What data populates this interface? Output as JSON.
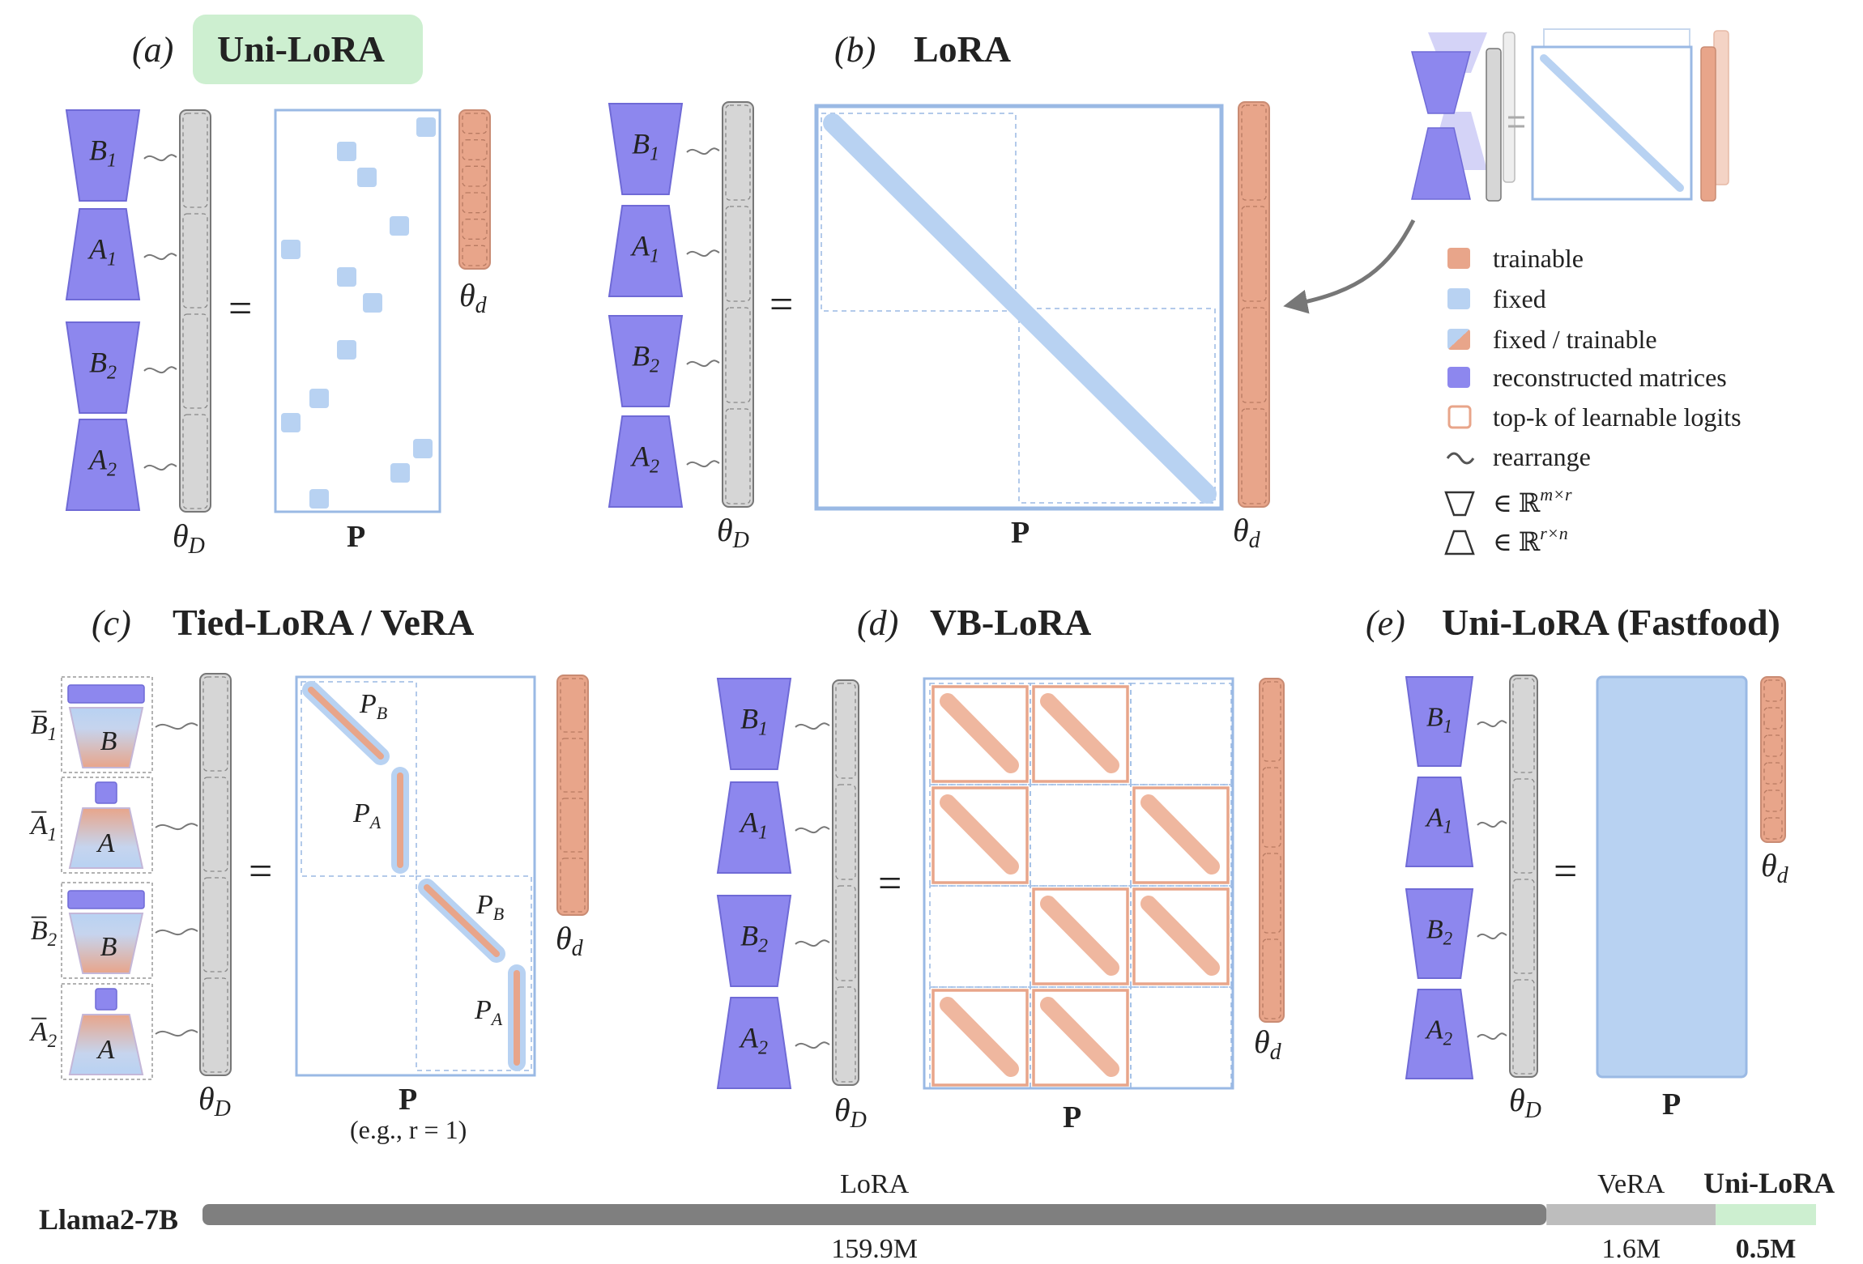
{
  "panels": {
    "a": {
      "label": "(a)",
      "title": "Uni-LoRA"
    },
    "b": {
      "label": "(b)",
      "title": "LoRA"
    },
    "c": {
      "label": "(c)",
      "title": "Tied-LoRA / VeRA"
    },
    "d": {
      "label": "(d)",
      "title": "VB-LoRA"
    },
    "e": {
      "label": "(e)",
      "title": "Uni-LoRA (Fastfood)"
    }
  },
  "matrix_labels": {
    "B1": "B",
    "A1": "A",
    "B2": "B",
    "A2": "A",
    "sub1": "1",
    "sub2": "2",
    "theta": "θ",
    "sub_D": "D",
    "sub_d": "d",
    "P": "P",
    "PA": "P",
    "PB": "P",
    "sub_A": "A",
    "sub_B": "B",
    "equals": "=",
    "bar_B": "B",
    "bar_A": "A"
  },
  "tied_note": "(e.g., r = 1)",
  "legend": {
    "trainable": "trainable",
    "fixed": "fixed",
    "fixed_trainable": "fixed / trainable",
    "reconstructed": "reconstructed matrices",
    "topk": "top-k of learnable logits",
    "rearrange": "rearrange",
    "down_shape": "∈ ℝ",
    "down_sup": "m×r",
    "up_shape": "∈ ℝ",
    "up_sup": "r×n",
    "tilde": "~"
  },
  "colors": {
    "trainable": "#e8a58a",
    "fixed": "#b8d2f2",
    "reconstructed": "#8d87ee",
    "gray_vector": "#d6d6d6",
    "unilora_highlight": "#cdefd0"
  },
  "chart_data": {
    "type": "bar",
    "orientation": "horizontal-stacked",
    "model": "Llama2-7B",
    "categories": [
      "LoRA",
      "VeRA",
      "Uni-LoRA"
    ],
    "values": [
      159.9,
      1.6,
      0.5
    ],
    "value_labels": [
      "159.9M",
      "1.6M",
      "0.5M"
    ],
    "colors": [
      "#7f7f7f",
      "#bdbdbd",
      "#cdefd0"
    ]
  }
}
